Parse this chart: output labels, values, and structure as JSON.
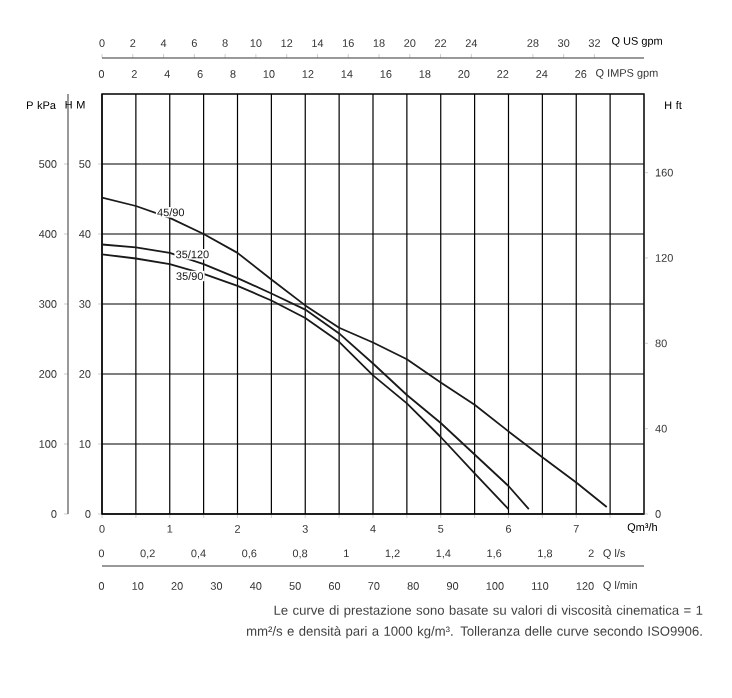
{
  "chart_data": {
    "type": "line",
    "xlabel": "Qm³/h",
    "ylabel": "H M",
    "y2label": "P kPa",
    "y3label": "H ft",
    "x2label": "Q US gpm",
    "xlim": [
      0,
      8
    ],
    "xticks": [
      0,
      {
        "value": 0.5,
        "label": null
      },
      1,
      {
        "value": 1.5,
        "label": null
      },
      2,
      {
        "value": 2.5,
        "label": null
      },
      3,
      {
        "value": 3.5,
        "label": null
      },
      4,
      {
        "value": 4.5,
        "label": null
      },
      5,
      {
        "value": 5.5,
        "label": null
      },
      6,
      {
        "value": 6.5,
        "label": null
      },
      7,
      {
        "value": 7.5,
        "label": null
      }
    ],
    "ylim": [
      0,
      60
    ],
    "yticks": [
      0,
      10,
      20,
      30,
      40,
      50
    ],
    "y2lim": [
      0,
      600
    ],
    "y2ticks": [
      0,
      100,
      200,
      300,
      400,
      500
    ],
    "y3lim": [
      0,
      196.85
    ],
    "y3ticks": [
      0,
      40,
      80,
      120,
      160
    ],
    "x2lim": [
      0,
      35.22
    ],
    "x2ticks": [
      0,
      2,
      4,
      6,
      8,
      10,
      12,
      14,
      16,
      18,
      20,
      22,
      24,
      28,
      30,
      32
    ],
    "grid": true,
    "series": [
      {
        "name": "45/90",
        "color": "#1a1a1a",
        "x": [
          0,
          0.5,
          1,
          1.5,
          2,
          2.5,
          3,
          3.5,
          4,
          4.5,
          5,
          5.5,
          6,
          6.5,
          7,
          7.45
        ],
        "values": [
          45.2,
          44.0,
          42.3,
          40.0,
          37.3,
          33.5,
          29.8,
          26.6,
          24.5,
          22.1,
          18.8,
          15.6,
          11.8,
          8.1,
          4.5,
          1.0
        ]
      },
      {
        "name": "35/120",
        "color": "#1a1a1a",
        "x": [
          0,
          0.5,
          1,
          1.5,
          2,
          2.5,
          3,
          3.5,
          4,
          4.5,
          5,
          5.5,
          6,
          6.3
        ],
        "values": [
          38.5,
          38.1,
          37.3,
          35.7,
          33.7,
          31.5,
          29.2,
          25.8,
          21.5,
          17.0,
          13.0,
          8.5,
          4.0,
          0.7
        ]
      },
      {
        "name": "35/90",
        "color": "#1a1a1a",
        "x": [
          0,
          0.5,
          1,
          1.5,
          2,
          2.5,
          3,
          3.5,
          4,
          4.5,
          5,
          5.5,
          6
        ],
        "values": [
          37.1,
          36.5,
          35.7,
          34.3,
          32.6,
          30.5,
          28.0,
          24.6,
          19.8,
          15.8,
          11.0,
          5.8,
          0.7
        ]
      }
    ],
    "annotations": [
      "0 2 4 6 8 10 12 14 16 18 20 22 24 26",
      "Q IMPS gpm",
      "0 0,2 0,4 0,6 0,8 1 1,2 1,4 1,6 1,8 2",
      "Q l/s",
      "0 10 20 30 40 50 60 70 80 90 100 110 120",
      "Q l/min",
      "Le curve di prestazione sono basate su valori di viscosità cinematica = 1 mm²/s e densità pari a 1000 kg/m³. Tolleranza delle curve secondo ISO9906."
    ]
  }
}
